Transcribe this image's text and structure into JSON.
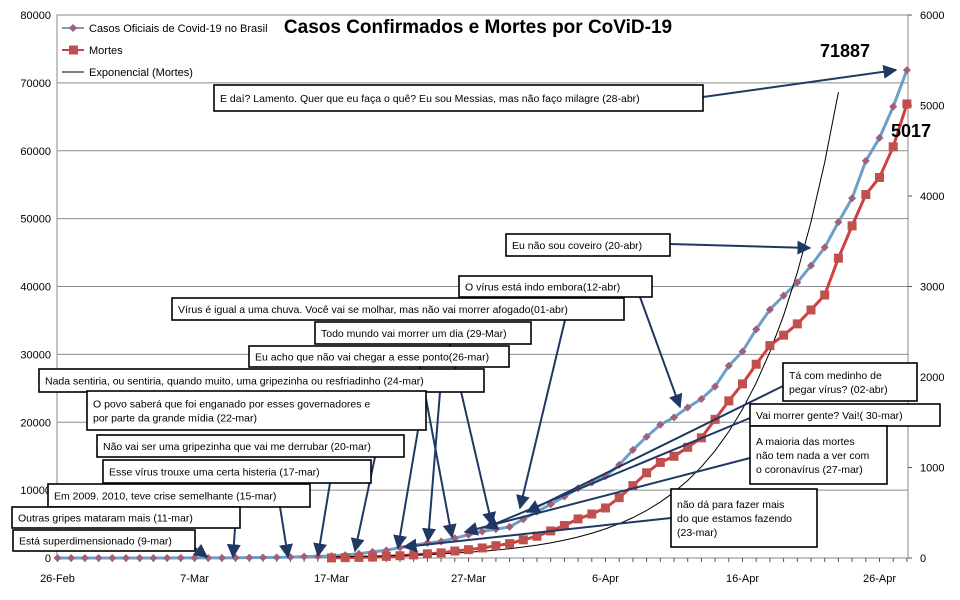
{
  "chart_data": {
    "type": "line",
    "title": "Casos Confirmados e Mortes por CoViD-19",
    "x_tick_labels": [
      "26-Feb",
      "7-Mar",
      "17-Mar",
      "27-Mar",
      "6-Apr",
      "16-Apr",
      "26-Apr"
    ],
    "y_left": {
      "min": 0,
      "max": 80000,
      "ticks": [
        "0",
        "10000",
        "20000",
        "30000",
        "40000",
        "50000",
        "60000",
        "70000",
        "80000"
      ]
    },
    "y_right": {
      "min": 0,
      "max": 6000,
      "ticks": [
        "0",
        "1000",
        "2000",
        "3000",
        "4000",
        "5000",
        "6000"
      ]
    },
    "grid": true,
    "legend_position": "top-left",
    "series": [
      {
        "name": "Casos Oficiais de Covid-19 no Brasil",
        "axis": "left",
        "color": "#6e9ec8",
        "marker_color": "#a0607a",
        "x": [
          "26-Feb",
          "27-Feb",
          "28-Feb",
          "29-Feb",
          "1-Mar",
          "2-Mar",
          "3-Mar",
          "4-Mar",
          "5-Mar",
          "6-Mar",
          "7-Mar",
          "8-Mar",
          "9-Mar",
          "10-Mar",
          "11-Mar",
          "12-Mar",
          "13-Mar",
          "14-Mar",
          "15-Mar",
          "16-Mar",
          "17-Mar",
          "18-Mar",
          "19-Mar",
          "20-Mar",
          "21-Mar",
          "22-Mar",
          "23-Mar",
          "24-Mar",
          "25-Mar",
          "26-Mar",
          "27-Mar",
          "28-Mar",
          "29-Mar",
          "30-Mar",
          "31-Mar",
          "1-Apr",
          "2-Apr",
          "3-Apr",
          "4-Apr",
          "5-Apr",
          "6-Apr",
          "7-Apr",
          "8-Apr",
          "9-Apr",
          "10-Apr",
          "11-Apr",
          "12-Apr",
          "13-Apr",
          "14-Apr",
          "15-Apr",
          "16-Apr",
          "17-Apr",
          "18-Apr",
          "19-Apr",
          "20-Apr",
          "21-Apr",
          "22-Apr",
          "23-Apr",
          "24-Apr",
          "25-Apr",
          "26-Apr",
          "27-Apr",
          "28-Apr"
        ],
        "values": [
          1,
          1,
          1,
          2,
          2,
          2,
          2,
          4,
          8,
          13,
          19,
          25,
          25,
          34,
          52,
          77,
          98,
          121,
          200,
          234,
          291,
          428,
          621,
          904,
          1128,
          1546,
          1891,
          2201,
          2433,
          2915,
          3417,
          3904,
          4256,
          4579,
          5717,
          6836,
          7910,
          9056,
          10278,
          11130,
          12056,
          13717,
          15927,
          17857,
          19638,
          20727,
          22169,
          23430,
          25262,
          28320,
          30425,
          33682,
          36599,
          38654,
          40581,
          43079,
          45757,
          49492,
          52995,
          58509,
          61888,
          66501,
          71887
        ]
      },
      {
        "name": "Mortes",
        "axis": "right",
        "color": "#d04040",
        "marker_color": "#c0504d",
        "x": [
          "17-Mar",
          "18-Mar",
          "19-Mar",
          "20-Mar",
          "21-Mar",
          "22-Mar",
          "23-Mar",
          "24-Mar",
          "25-Mar",
          "26-Mar",
          "27-Mar",
          "28-Mar",
          "29-Mar",
          "30-Mar",
          "31-Mar",
          "1-Apr",
          "2-Apr",
          "3-Apr",
          "4-Apr",
          "5-Apr",
          "6-Apr",
          "7-Apr",
          "8-Apr",
          "9-Apr",
          "10-Apr",
          "11-Apr",
          "12-Apr",
          "13-Apr",
          "14-Apr",
          "15-Apr",
          "16-Apr",
          "17-Apr",
          "18-Apr",
          "19-Apr",
          "20-Apr",
          "21-Apr",
          "22-Apr",
          "23-Apr",
          "24-Apr",
          "25-Apr",
          "26-Apr",
          "27-Apr",
          "28-Apr"
        ],
        "values": [
          1,
          4,
          7,
          11,
          18,
          25,
          34,
          46,
          57,
          77,
          92,
          111,
          136,
          159,
          201,
          240,
          299,
          359,
          432,
          486,
          553,
          667,
          800,
          941,
          1056,
          1124,
          1223,
          1328,
          1532,
          1736,
          1924,
          2141,
          2347,
          2462,
          2587,
          2741,
          2906,
          3313,
          3670,
          4016,
          4205,
          4543,
          5017
        ]
      },
      {
        "name": "Exponencial (Mortes)",
        "axis": "right",
        "color": "#000000"
      }
    ],
    "callouts": [
      {
        "label": "71887",
        "target": "28-Apr"
      },
      {
        "label": "5017",
        "target": "28-Apr"
      }
    ],
    "annotations": [
      {
        "lines": [
          "E daí? Lamento. Quer que eu faça o quê? Eu sou Messias,  mas não faço milagre (28-abr)"
        ],
        "target": "28-Apr"
      },
      {
        "lines": [
          "Eu não sou coveiro (20-abr)"
        ],
        "target": "20-Apr"
      },
      {
        "lines": [
          "O vírus está indo embora(12-abr)"
        ],
        "target": "12-Apr"
      },
      {
        "lines": [
          "Vírus é igual a uma chuva.  Você vai se molhar, mas não vai morrer afogado(01-abr)"
        ],
        "target": "1-Apr"
      },
      {
        "lines": [
          "Todo mundo vai morrer um dia (29-Mar)"
        ],
        "target": "29-Mar"
      },
      {
        "lines": [
          "Eu acho que não vai chegar a esse ponto(26-mar)"
        ],
        "target": "26-Mar"
      },
      {
        "lines": [
          "Nada sentiria, ou sentiria, quando muito, uma gripezinha ou resfriadinho (24-mar)"
        ],
        "target": "24-Mar"
      },
      {
        "lines": [
          "O povo saberá que foi enganado por esses governadores e",
          "por parte da grande mídia (22-mar)"
        ],
        "target": "22-Mar"
      },
      {
        "lines": [
          "Não vai ser uma gripezinha que vai me derrubar (20-mar)"
        ],
        "target": "20-Mar"
      },
      {
        "lines": [
          "Esse vírus trouxe uma certa histeria (17-mar)"
        ],
        "target": "17-Mar"
      },
      {
        "lines": [
          "Em 2009. 2010, teve crise semelhante  (15-mar)"
        ],
        "target": "15-Mar"
      },
      {
        "lines": [
          "Outras gripes mataram  mais  (11-mar)"
        ],
        "target": "11-Mar"
      },
      {
        "lines": [
          "Está superdimensionado (9-mar)"
        ],
        "target": "9-Mar"
      },
      {
        "lines": [
          "Tá com medinho de",
          "pegar vírus? (02-abr)"
        ],
        "target": "2-Apr"
      },
      {
        "lines": [
          "Vai morrer gente? Vai!( 30-mar)"
        ],
        "target": "30-Mar"
      },
      {
        "lines": [
          "A maioria das mortes",
          "não tem nada a ver com",
          "o coronavírus (27-mar)"
        ],
        "target": "27-Mar"
      },
      {
        "lines": [
          "não dá para fazer mais",
          "do que estamos fazendo",
          "(23-mar)"
        ],
        "target": "23-Mar"
      }
    ]
  }
}
